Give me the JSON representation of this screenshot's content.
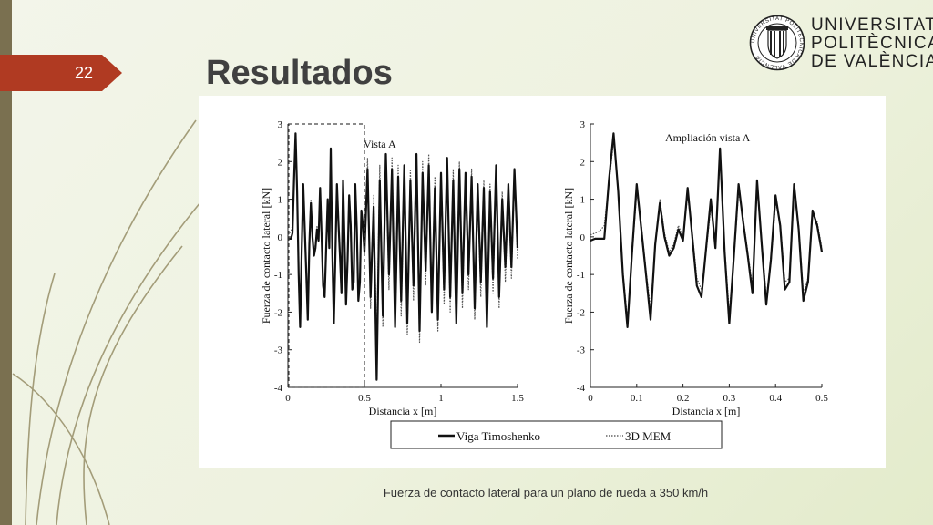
{
  "slide": {
    "number": "22",
    "title": "Resultados",
    "caption": "Fuerza de contacto lateral para un plano de rueda a 350 km/h"
  },
  "logo": {
    "seal_text": "UNIVERSITAT POLITÈCNICA DE VALÈNCIA",
    "name_lines": [
      "UNIVERSITAT",
      "POLITÈCNICA",
      "DE VALÈNCIA"
    ]
  },
  "colors": {
    "accent": "#b03a22",
    "sidebar": "#7a7050",
    "deco_lines": "#8a8056"
  },
  "chart_data": [
    {
      "type": "line",
      "title": "",
      "xlabel": "Distancia x [m]",
      "ylabel": "Fuerza de contacto lateral [kN]",
      "xlim": [
        0,
        1.5
      ],
      "ylim": [
        -4,
        3
      ],
      "xticks": [
        "0",
        "0.5",
        "1",
        "1.5"
      ],
      "yticks": [
        "-4",
        "-3",
        "-2",
        "-1",
        "0",
        "1",
        "2",
        "3"
      ],
      "annotation": "Vista A",
      "zoom_box": {
        "x": [
          0,
          0.5
        ],
        "y": [
          -4,
          3
        ]
      },
      "series": [
        {
          "name": "Viga Timoshenko",
          "x": [
            0,
            0.02,
            0.03,
            0.04,
            0.05,
            0.06,
            0.07,
            0.08,
            0.09,
            0.1,
            0.11,
            0.12,
            0.13,
            0.14,
            0.15,
            0.16,
            0.17,
            0.18,
            0.19,
            0.2,
            0.21,
            0.22,
            0.23,
            0.24,
            0.25,
            0.26,
            0.27,
            0.28,
            0.29,
            0.3,
            0.31,
            0.32,
            0.33,
            0.34,
            0.35,
            0.36,
            0.37,
            0.38,
            0.39,
            0.4,
            0.41,
            0.42,
            0.43,
            0.44,
            0.45,
            0.46,
            0.47,
            0.48,
            0.49,
            0.5,
            0.52,
            0.54,
            0.56,
            0.58,
            0.6,
            0.62,
            0.64,
            0.66,
            0.68,
            0.7,
            0.72,
            0.74,
            0.76,
            0.78,
            0.8,
            0.82,
            0.84,
            0.86,
            0.88,
            0.9,
            0.92,
            0.94,
            0.96,
            0.98,
            1.0,
            1.02,
            1.04,
            1.06,
            1.08,
            1.1,
            1.12,
            1.14,
            1.16,
            1.18,
            1.2,
            1.22,
            1.24,
            1.26,
            1.28,
            1.3,
            1.32,
            1.34,
            1.36,
            1.38,
            1.4,
            1.42,
            1.44,
            1.46,
            1.48,
            1.5
          ],
          "y": [
            -0.05,
            -0.05,
            0.1,
            1.5,
            2.75,
            1.2,
            -1.0,
            -2.4,
            -0.4,
            1.4,
            0.2,
            -1.0,
            -2.2,
            -0.2,
            0.9,
            0.0,
            -0.5,
            -0.3,
            0.2,
            -0.1,
            1.3,
            0.0,
            -1.3,
            -1.6,
            -0.3,
            1.0,
            -0.3,
            2.35,
            -0.4,
            -2.3,
            -0.5,
            1.4,
            0.4,
            -0.5,
            -1.5,
            1.5,
            -0.2,
            -1.8,
            -0.6,
            1.1,
            0.3,
            -1.4,
            -1.2,
            1.4,
            0.2,
            -1.7,
            -1.2,
            0.7,
            0.3,
            -0.4,
            1.8,
            -1.6,
            0.8,
            -3.8,
            1.5,
            -2.1,
            2.2,
            -1.0,
            1.8,
            -2.4,
            1.6,
            -1.7,
            1.9,
            -2.3,
            1.5,
            -1.3,
            2.2,
            -2.5,
            1.7,
            -0.9,
            1.9,
            -2.0,
            1.3,
            -2.2,
            1.7,
            -1.4,
            2.1,
            -1.6,
            1.5,
            -2.3,
            1.8,
            -1.5,
            1.7,
            -1.0,
            1.6,
            -1.9,
            1.4,
            -1.2,
            1.3,
            -2.4,
            1.2,
            -1.1,
            1.9,
            -1.6,
            1.0,
            -0.8,
            1.4,
            -0.8,
            1.8,
            -0.3
          ]
        },
        {
          "name": "3D MEM",
          "x": [
            0,
            0.02,
            0.03,
            0.04,
            0.05,
            0.06,
            0.07,
            0.08,
            0.09,
            0.1,
            0.11,
            0.12,
            0.13,
            0.14,
            0.15,
            0.16,
            0.17,
            0.18,
            0.19,
            0.2,
            0.21,
            0.22,
            0.23,
            0.24,
            0.25,
            0.26,
            0.27,
            0.28,
            0.29,
            0.3,
            0.31,
            0.32,
            0.33,
            0.34,
            0.35,
            0.36,
            0.37,
            0.38,
            0.39,
            0.4,
            0.41,
            0.42,
            0.43,
            0.44,
            0.45,
            0.46,
            0.47,
            0.48,
            0.49,
            0.5,
            0.52,
            0.54,
            0.56,
            0.58,
            0.6,
            0.62,
            0.64,
            0.66,
            0.68,
            0.7,
            0.72,
            0.74,
            0.76,
            0.78,
            0.8,
            0.82,
            0.84,
            0.86,
            0.88,
            0.9,
            0.92,
            0.94,
            0.96,
            0.98,
            1.0,
            1.02,
            1.04,
            1.06,
            1.08,
            1.1,
            1.12,
            1.14,
            1.16,
            1.18,
            1.2,
            1.22,
            1.24,
            1.26,
            1.28,
            1.3,
            1.32,
            1.34,
            1.36,
            1.38,
            1.4,
            1.42,
            1.44,
            1.46,
            1.48,
            1.5
          ],
          "y": [
            0.05,
            0.15,
            0.3,
            1.4,
            2.55,
            1.3,
            -0.9,
            -2.2,
            -0.5,
            1.2,
            0.3,
            -0.9,
            -1.9,
            -0.3,
            1.0,
            0.1,
            -0.4,
            -0.2,
            0.3,
            0.0,
            1.1,
            0.1,
            -1.1,
            -1.4,
            -0.4,
            0.8,
            -0.2,
            2.1,
            -0.3,
            -2.0,
            -0.6,
            1.2,
            0.5,
            -0.4,
            -1.3,
            1.3,
            -0.1,
            -1.6,
            -0.7,
            0.9,
            0.4,
            -1.2,
            -1.1,
            1.2,
            0.3,
            -1.5,
            -1.1,
            0.6,
            0.4,
            -0.3,
            2.1,
            -1.9,
            1.1,
            -2.9,
            1.9,
            -2.4,
            2.0,
            -1.4,
            2.1,
            -2.0,
            1.9,
            -2.1,
            1.6,
            -2.6,
            1.8,
            -1.7,
            1.9,
            -2.8,
            2.0,
            -1.3,
            2.2,
            -1.8,
            1.6,
            -2.5,
            1.5,
            -1.8,
            1.9,
            -2.0,
            1.8,
            -2.0,
            2.0,
            -1.9,
            1.5,
            -1.4,
            1.8,
            -2.2,
            1.2,
            -1.6,
            1.5,
            -2.1,
            1.4,
            -1.5,
            1.7,
            -1.9,
            1.2,
            -1.2,
            1.2,
            -1.1,
            1.6,
            -0.6
          ]
        }
      ]
    },
    {
      "type": "line",
      "title": "",
      "xlabel": "Distancia x [m]",
      "ylabel": "Fuerza de contacto lateral [kN]",
      "xlim": [
        0,
        0.5
      ],
      "ylim": [
        -4,
        3
      ],
      "xticks": [
        "0",
        "0.1",
        "0.2",
        "0.3",
        "0.4",
        "0.5"
      ],
      "yticks": [
        "-4",
        "-3",
        "-2",
        "-1",
        "0",
        "1",
        "2",
        "3"
      ],
      "annotation": "Ampliación vista A",
      "series": [
        {
          "name": "Viga Timoshenko",
          "x": [
            0,
            0.01,
            0.02,
            0.03,
            0.04,
            0.05,
            0.06,
            0.07,
            0.08,
            0.09,
            0.1,
            0.11,
            0.12,
            0.13,
            0.14,
            0.15,
            0.16,
            0.17,
            0.18,
            0.19,
            0.2,
            0.21,
            0.22,
            0.23,
            0.24,
            0.25,
            0.26,
            0.27,
            0.28,
            0.29,
            0.3,
            0.31,
            0.32,
            0.33,
            0.34,
            0.35,
            0.36,
            0.37,
            0.38,
            0.39,
            0.4,
            0.41,
            0.42,
            0.43,
            0.44,
            0.45,
            0.46,
            0.47,
            0.48,
            0.49,
            0.5
          ],
          "y": [
            -0.1,
            -0.05,
            -0.05,
            -0.05,
            1.5,
            2.75,
            1.2,
            -1.0,
            -2.4,
            -0.4,
            1.4,
            0.2,
            -1.0,
            -2.2,
            -0.2,
            0.9,
            0.0,
            -0.5,
            -0.3,
            0.2,
            -0.1,
            1.3,
            0.0,
            -1.3,
            -1.6,
            -0.3,
            1.0,
            -0.3,
            2.35,
            -0.4,
            -2.3,
            -0.5,
            1.4,
            0.4,
            -0.5,
            -1.5,
            1.5,
            -0.2,
            -1.8,
            -0.6,
            1.1,
            0.3,
            -1.4,
            -1.2,
            1.4,
            0.2,
            -1.7,
            -1.2,
            0.7,
            0.3,
            -0.4
          ]
        },
        {
          "name": "3D MEM",
          "x": [
            0,
            0.01,
            0.02,
            0.03,
            0.04,
            0.05,
            0.06,
            0.07,
            0.08,
            0.09,
            0.1,
            0.11,
            0.12,
            0.13,
            0.14,
            0.15,
            0.16,
            0.17,
            0.18,
            0.19,
            0.2,
            0.21,
            0.22,
            0.23,
            0.24,
            0.25,
            0.26,
            0.27,
            0.28,
            0.29,
            0.3,
            0.31,
            0.32,
            0.33,
            0.34,
            0.35,
            0.36,
            0.37,
            0.38,
            0.39,
            0.4,
            0.41,
            0.42,
            0.43,
            0.44,
            0.45,
            0.46,
            0.47,
            0.48,
            0.49,
            0.5
          ],
          "y": [
            0.05,
            0.1,
            0.15,
            0.3,
            1.4,
            2.55,
            1.3,
            -0.9,
            -2.2,
            -0.5,
            1.2,
            0.3,
            -0.9,
            -1.9,
            -0.3,
            1.0,
            0.1,
            -0.4,
            -0.2,
            0.3,
            0.0,
            1.1,
            0.1,
            -1.1,
            -1.4,
            -0.4,
            0.8,
            -0.2,
            2.1,
            -0.3,
            -2.0,
            -0.6,
            1.2,
            0.5,
            -0.4,
            -1.3,
            1.3,
            -0.1,
            -1.6,
            -0.7,
            0.9,
            0.4,
            -1.2,
            -1.1,
            1.2,
            0.3,
            -1.5,
            -1.1,
            0.6,
            0.4,
            -0.3
          ]
        }
      ]
    }
  ],
  "legend": {
    "position": "bottom",
    "entries": [
      "Viga Timoshenko",
      "3D MEM"
    ]
  }
}
